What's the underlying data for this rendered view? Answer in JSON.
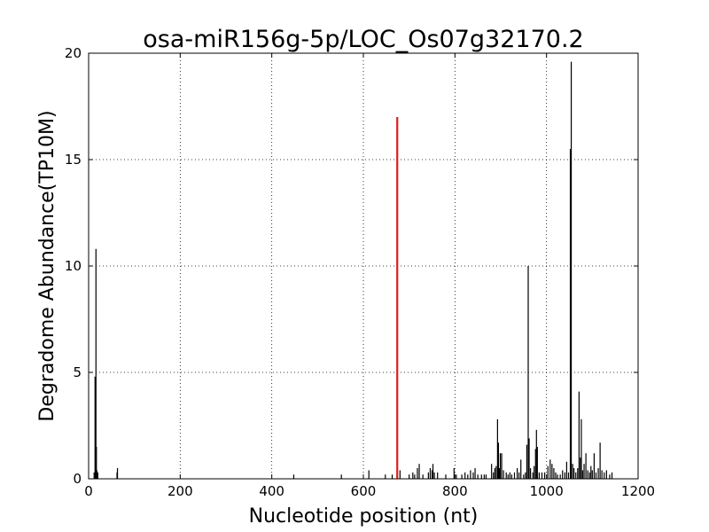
{
  "chart_data": {
    "type": "bar",
    "title": "osa-miR156g-5p/LOC_Os07g32170.2",
    "xlabel": "Nucleotide position (nt)",
    "ylabel": "Degradome Abundance(TP10M)",
    "xlim": [
      0,
      1200
    ],
    "ylim": [
      0,
      20
    ],
    "xticks": [
      0,
      200,
      400,
      600,
      800,
      1000,
      1200
    ],
    "yticks": [
      0,
      5,
      10,
      15,
      20
    ],
    "grid": true,
    "grid_style": "dotted",
    "bar_color": "#000000",
    "highlight_color": "#e01b1b",
    "highlight": {
      "x": 674,
      "y": 17.0
    },
    "bars": [
      [
        12,
        0.3
      ],
      [
        14,
        4.8
      ],
      [
        15,
        1.5
      ],
      [
        16,
        10.8
      ],
      [
        17,
        1.5
      ],
      [
        18,
        0.4
      ],
      [
        20,
        0.3
      ],
      [
        62,
        0.3
      ],
      [
        63,
        0.5
      ],
      [
        448,
        0.2
      ],
      [
        552,
        0.2
      ],
      [
        612,
        0.4
      ],
      [
        648,
        0.2
      ],
      [
        663,
        0.2
      ],
      [
        680,
        0.4
      ],
      [
        700,
        0.2
      ],
      [
        708,
        0.3
      ],
      [
        712,
        0.2
      ],
      [
        718,
        0.5
      ],
      [
        722,
        0.7
      ],
      [
        730,
        0.2
      ],
      [
        742,
        0.3
      ],
      [
        746,
        0.5
      ],
      [
        750,
        0.4
      ],
      [
        752,
        0.7
      ],
      [
        755,
        0.3
      ],
      [
        762,
        0.3
      ],
      [
        780,
        0.2
      ],
      [
        798,
        0.5
      ],
      [
        803,
        0.2
      ],
      [
        815,
        0.2
      ],
      [
        822,
        0.3
      ],
      [
        828,
        0.2
      ],
      [
        834,
        0.4
      ],
      [
        840,
        0.3
      ],
      [
        844,
        0.5
      ],
      [
        850,
        0.2
      ],
      [
        858,
        0.2
      ],
      [
        864,
        0.2
      ],
      [
        868,
        0.2
      ],
      [
        880,
        0.7
      ],
      [
        884,
        0.3
      ],
      [
        887,
        0.5
      ],
      [
        890,
        0.6
      ],
      [
        893,
        2.8
      ],
      [
        895,
        1.7
      ],
      [
        897,
        0.5
      ],
      [
        899,
        1.2
      ],
      [
        902,
        1.2
      ],
      [
        906,
        0.4
      ],
      [
        912,
        0.3
      ],
      [
        916,
        0.2
      ],
      [
        920,
        0.3
      ],
      [
        924,
        0.2
      ],
      [
        930,
        0.3
      ],
      [
        936,
        0.5
      ],
      [
        940,
        0.3
      ],
      [
        944,
        0.9
      ],
      [
        950,
        0.2
      ],
      [
        954,
        0.3
      ],
      [
        957,
        1.6
      ],
      [
        960,
        10.0
      ],
      [
        962,
        1.9
      ],
      [
        965,
        0.5
      ],
      [
        970,
        0.3
      ],
      [
        973,
        0.6
      ],
      [
        976,
        1.4
      ],
      [
        978,
        2.3
      ],
      [
        980,
        1.5
      ],
      [
        984,
        0.3
      ],
      [
        990,
        0.3
      ],
      [
        996,
        0.3
      ],
      [
        1003,
        0.6
      ],
      [
        1008,
        0.9
      ],
      [
        1012,
        0.7
      ],
      [
        1016,
        0.5
      ],
      [
        1020,
        0.3
      ],
      [
        1024,
        0.2
      ],
      [
        1030,
        0.2
      ],
      [
        1035,
        0.4
      ],
      [
        1040,
        0.3
      ],
      [
        1044,
        0.8
      ],
      [
        1048,
        0.3
      ],
      [
        1052,
        15.5
      ],
      [
        1054,
        19.6
      ],
      [
        1057,
        0.7
      ],
      [
        1060,
        0.5
      ],
      [
        1064,
        0.3
      ],
      [
        1068,
        0.5
      ],
      [
        1071,
        4.1
      ],
      [
        1074,
        1.0
      ],
      [
        1076,
        2.8
      ],
      [
        1079,
        0.4
      ],
      [
        1082,
        0.7
      ],
      [
        1086,
        1.2
      ],
      [
        1090,
        0.4
      ],
      [
        1094,
        0.3
      ],
      [
        1097,
        0.6
      ],
      [
        1100,
        0.4
      ],
      [
        1104,
        1.2
      ],
      [
        1108,
        0.3
      ],
      [
        1113,
        0.5
      ],
      [
        1117,
        1.7
      ],
      [
        1121,
        0.4
      ],
      [
        1126,
        0.3
      ],
      [
        1131,
        0.4
      ],
      [
        1138,
        0.2
      ],
      [
        1143,
        0.3
      ]
    ]
  }
}
